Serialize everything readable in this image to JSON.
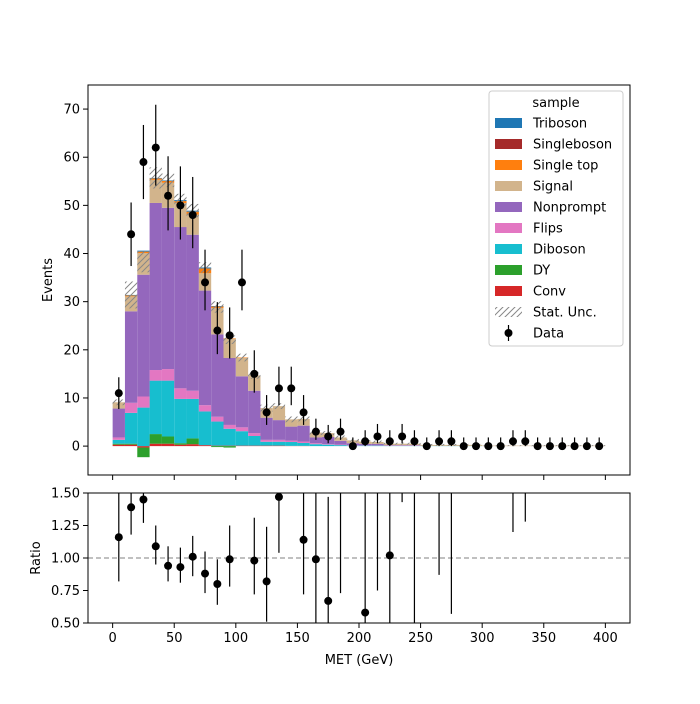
{
  "chart_data": {
    "type": "bar",
    "x_label": "MET (GeV)",
    "x_ticks": [
      0,
      50,
      100,
      150,
      200,
      250,
      300,
      350,
      400
    ],
    "bin_edges": [
      0,
      10,
      20,
      30,
      40,
      50,
      60,
      70,
      80,
      90,
      100,
      110,
      120,
      130,
      140,
      150,
      160,
      170,
      180,
      190,
      200,
      210,
      220,
      230,
      240,
      250,
      260,
      270,
      280,
      290,
      300,
      310,
      320,
      330,
      340,
      350,
      360,
      370,
      380,
      390,
      400
    ],
    "main": {
      "y_label": "Events",
      "y_range": [
        -6,
        75
      ],
      "y_ticks": [
        0,
        10,
        20,
        30,
        40,
        50,
        60,
        70
      ],
      "legend_title": "sample",
      "legend_position": "top-right",
      "legend": [
        {
          "label": "Triboson",
          "color": "#1f77b4",
          "kind": "patch"
        },
        {
          "label": "Singleboson",
          "color": "#a52a2a",
          "kind": "patch"
        },
        {
          "label": "Single top",
          "color": "#ff7f0e",
          "kind": "patch"
        },
        {
          "label": "Signal",
          "color": "#d2b48c",
          "kind": "patch"
        },
        {
          "label": "Nonprompt",
          "color": "#9467bd",
          "kind": "patch"
        },
        {
          "label": "Flips",
          "color": "#e377c2",
          "kind": "patch"
        },
        {
          "label": "Diboson",
          "color": "#17becf",
          "kind": "patch"
        },
        {
          "label": "DY",
          "color": "#2ca02c",
          "kind": "patch"
        },
        {
          "label": "Conv",
          "color": "#d62728",
          "kind": "patch"
        },
        {
          "label": "Stat. Unc.",
          "color": "#888888",
          "kind": "hatch"
        },
        {
          "label": "Data",
          "color": "#000000",
          "kind": "errorbar"
        }
      ],
      "stacks": [
        {
          "name": "Conv",
          "color": "#d62728",
          "values": [
            0.3,
            0.3,
            -0.3,
            0.5,
            0.5,
            0.3,
            0.4,
            0.2,
            0.1,
            0.1,
            0.1,
            0.1,
            0.1,
            0.1,
            0.05,
            0.05,
            0,
            0,
            0,
            0,
            0,
            0,
            0,
            0,
            0,
            0,
            0,
            0,
            0,
            0,
            0,
            0,
            0,
            0,
            0,
            0,
            0,
            0,
            0,
            0
          ]
        },
        {
          "name": "DY",
          "color": "#2ca02c",
          "values": [
            0.2,
            0.2,
            -2.0,
            2.0,
            1.5,
            0.3,
            1.2,
            0.0,
            -0.2,
            -0.3,
            0.0,
            0.0,
            0.0,
            0.0,
            0.0,
            0.0,
            0,
            0,
            0,
            0,
            0,
            0,
            0,
            0,
            0,
            0,
            0,
            0,
            0,
            0,
            0,
            0,
            0,
            0,
            0,
            0,
            0,
            0,
            0,
            0
          ]
        },
        {
          "name": "Diboson",
          "color": "#17becf",
          "values": [
            0.8,
            6.4,
            8.0,
            11.1,
            11.6,
            9.2,
            8.2,
            7.0,
            5.0,
            3.5,
            3.0,
            2.0,
            0.8,
            0.8,
            0.8,
            0.6,
            0.4,
            0.3,
            0.2,
            0.1,
            0.1,
            0.1,
            0.05,
            0.05,
            0.05,
            0.05,
            0.05,
            0.05,
            0.05,
            0.05,
            0,
            0,
            0,
            0,
            0,
            0,
            0,
            0,
            0,
            0
          ]
        },
        {
          "name": "Flips",
          "color": "#e377c2",
          "values": [
            0.5,
            2.1,
            2.3,
            2.2,
            2.4,
            2.2,
            1.7,
            1.3,
            1.0,
            0.8,
            0.8,
            0.6,
            0.4,
            0.4,
            0.3,
            0.3,
            0.2,
            0.1,
            0.1,
            0.1,
            0.05,
            0.05,
            0.05,
            0.05,
            0.05,
            0,
            0,
            0,
            0,
            0,
            0,
            0,
            0,
            0,
            0,
            0,
            0,
            0,
            0,
            0
          ]
        },
        {
          "name": "Nonprompt",
          "color": "#9467bd",
          "values": [
            6.0,
            19.0,
            25.3,
            34.7,
            33.5,
            33.5,
            32.4,
            23.8,
            17.1,
            13.9,
            10.6,
            8.8,
            4.6,
            4.1,
            2.9,
            3.3,
            1.2,
            1.5,
            0.8,
            0.4,
            0.3,
            0.3,
            0.1,
            0.1,
            0.1,
            0,
            0,
            0,
            0,
            0,
            0,
            0,
            0,
            0,
            0,
            0,
            0,
            0,
            0,
            0
          ]
        },
        {
          "name": "Signal",
          "color": "#d2b48c",
          "values": [
            1.3,
            3.1,
            4.5,
            4.8,
            5.2,
            5.0,
            4.2,
            3.6,
            5.5,
            4.0,
            3.8,
            3.2,
            2.0,
            2.9,
            1.5,
            1.4,
            1.0,
            0.8,
            0.7,
            0.6,
            0.5,
            0.4,
            0.3,
            0.3,
            0.3,
            0.2,
            0.2,
            0.2,
            0.2,
            0.2,
            0.1,
            0.1,
            0.1,
            0.1,
            0.1,
            0.1,
            0.1,
            0.1,
            0.1,
            0.1
          ]
        },
        {
          "name": "Single top",
          "color": "#ff7f0e",
          "values": [
            0,
            0.2,
            0.3,
            0.3,
            0.4,
            0.4,
            0.6,
            1.0,
            0.3,
            0.1,
            0.1,
            0,
            0,
            0,
            0,
            0,
            0,
            0,
            0,
            0,
            0,
            0,
            0,
            0,
            0,
            0,
            0,
            0,
            0,
            0,
            0,
            0,
            0,
            0,
            0,
            0,
            0,
            0,
            0,
            0
          ]
        },
        {
          "name": "Singleboson",
          "color": "#a52a2a",
          "values": [
            0,
            0,
            0,
            0,
            0,
            0,
            0,
            0,
            0,
            0,
            0,
            0,
            0,
            0,
            0,
            0,
            0,
            0,
            0,
            0,
            0,
            0,
            0,
            0,
            0,
            0,
            0,
            0,
            0,
            0,
            0,
            0,
            0,
            0,
            0,
            0,
            0,
            0,
            0,
            0
          ]
        },
        {
          "name": "Triboson",
          "color": "#1f77b4",
          "values": [
            0,
            0.1,
            0.2,
            0.1,
            0.1,
            0.2,
            0.2,
            0.2,
            0.1,
            0.0,
            0.0,
            0,
            0,
            0,
            0,
            0,
            0,
            0,
            0,
            0,
            0,
            0,
            0,
            0,
            0,
            0,
            0,
            0,
            0,
            0,
            0,
            0,
            0,
            0,
            0,
            0,
            0,
            0,
            0,
            0
          ]
        }
      ],
      "stat_unc": [
        0.6,
        2.8,
        2.2,
        2.2,
        1.4,
        1.3,
        1.4,
        1.1,
        1.2,
        0.9,
        0.8,
        0.7,
        0.7,
        0.6,
        0.6,
        0.5,
        0.5,
        0.4,
        0.4,
        0.3,
        0.3,
        0.3,
        0.2,
        0.2,
        0.2,
        0.2,
        0.2,
        0.2,
        0.2,
        0.2,
        0.1,
        0.1,
        0.1,
        0.1,
        0.1,
        0.1,
        0.1,
        0.1,
        0.1,
        0.1
      ],
      "data": {
        "x": [
          5,
          15,
          25,
          35,
          45,
          55,
          65,
          75,
          85,
          95,
          105,
          115,
          125,
          135,
          145,
          155,
          165,
          175,
          185,
          195,
          205,
          215,
          225,
          235,
          245,
          255,
          265,
          275,
          285,
          295,
          305,
          315,
          325,
          335,
          345,
          355,
          365,
          375,
          385,
          395
        ],
        "y": [
          11,
          44,
          59,
          62,
          52,
          50,
          48,
          34,
          24,
          23,
          34,
          15,
          7,
          12,
          12,
          7,
          3,
          2,
          3,
          0,
          1,
          2,
          1,
          2,
          1,
          0,
          1,
          1,
          0,
          0,
          0,
          0,
          1,
          1,
          0,
          0,
          0,
          0,
          0,
          0
        ],
        "yerr_low": [
          3.3,
          6.6,
          7.7,
          7.9,
          7.2,
          7.1,
          6.9,
          5.8,
          4.9,
          4.8,
          5.8,
          3.9,
          2.6,
          3.5,
          3.5,
          2.6,
          1.7,
          1.4,
          1.7,
          0,
          1,
          1.4,
          1,
          1.4,
          1,
          0,
          1,
          1,
          0,
          0,
          0,
          0,
          1,
          1,
          0,
          0,
          0,
          0,
          0,
          0
        ],
        "yerr_high": [
          3.3,
          6.6,
          7.7,
          8.9,
          8.2,
          8.1,
          7.9,
          6.8,
          5.9,
          5.8,
          6.8,
          4.9,
          3.6,
          4.5,
          4.5,
          3.6,
          2.7,
          2.4,
          2.7,
          1.8,
          2.3,
          2.6,
          2.3,
          2.6,
          2.3,
          1.8,
          2.3,
          2.3,
          1.8,
          1.8,
          1.8,
          1.8,
          2.3,
          2.3,
          1.8,
          1.8,
          1.8,
          1.8,
          1.8,
          1.8
        ]
      }
    },
    "ratio": {
      "y_label": "Ratio",
      "y_range": [
        0.5,
        1.5
      ],
      "y_ticks": [
        0.5,
        0.75,
        1.0,
        1.25,
        1.5
      ],
      "y_tick_labels": [
        "0.50",
        "0.75",
        "1.00",
        "1.25",
        "1.50"
      ],
      "reference_line": 1.0,
      "points": [
        {
          "x": 5,
          "y": 1.16,
          "lo": 0.82,
          "hi": 1.5
        },
        {
          "x": 15,
          "y": 1.39,
          "lo": 1.18,
          "hi": 1.6
        },
        {
          "x": 25,
          "y": 1.45,
          "lo": 1.27,
          "hi": 1.64
        },
        {
          "x": 35,
          "y": 1.09,
          "lo": 0.95,
          "hi": 1.25
        },
        {
          "x": 45,
          "y": 0.94,
          "lo": 0.82,
          "hi": 1.09
        },
        {
          "x": 55,
          "y": 0.93,
          "lo": 0.81,
          "hi": 1.08
        },
        {
          "x": 65,
          "y": 1.01,
          "lo": 0.86,
          "hi": 1.17
        },
        {
          "x": 75,
          "y": 0.88,
          "lo": 0.73,
          "hi": 1.05
        },
        {
          "x": 85,
          "y": 0.8,
          "lo": 0.64,
          "hi": 0.99
        },
        {
          "x": 95,
          "y": 0.99,
          "lo": 0.78,
          "hi": 1.25
        },
        {
          "x": 115,
          "y": 0.98,
          "lo": 0.72,
          "hi": 1.31
        },
        {
          "x": 125,
          "y": 0.82,
          "lo": 0.51,
          "hi": 1.24
        },
        {
          "x": 135,
          "y": 1.47,
          "lo": 1.04,
          "hi": 2.02
        },
        {
          "x": 155,
          "y": 1.14,
          "lo": 0.72,
          "hi": 1.73
        },
        {
          "x": 165,
          "y": 0.99,
          "lo": 0.42,
          "hi": 1.87
        },
        {
          "x": 175,
          "y": 0.67,
          "lo": 0.2,
          "hi": 1.47
        },
        {
          "x": 185,
          "y": null,
          "lo": 0.73,
          "hi": 2.0
        },
        {
          "x": 205,
          "y": 0.58,
          "lo": 0.1,
          "hi": 1.94
        },
        {
          "x": 215,
          "y": null,
          "lo": 0.75,
          "hi": 2.5
        },
        {
          "x": 225,
          "y": 1.02,
          "lo": 0.18,
          "hi": 2.6
        },
        {
          "x": 235,
          "y": null,
          "lo": 1.43,
          "hi": 3.0
        },
        {
          "x": 245,
          "y": null,
          "lo": 0.3,
          "hi": 3.0
        },
        {
          "x": 265,
          "y": null,
          "lo": 0.87,
          "hi": 3.0
        },
        {
          "x": 275,
          "y": null,
          "lo": 0.57,
          "hi": 3.0
        },
        {
          "x": 325,
          "y": null,
          "lo": 1.2,
          "hi": 3.0
        },
        {
          "x": 335,
          "y": null,
          "lo": 1.28,
          "hi": 3.0
        }
      ]
    }
  }
}
